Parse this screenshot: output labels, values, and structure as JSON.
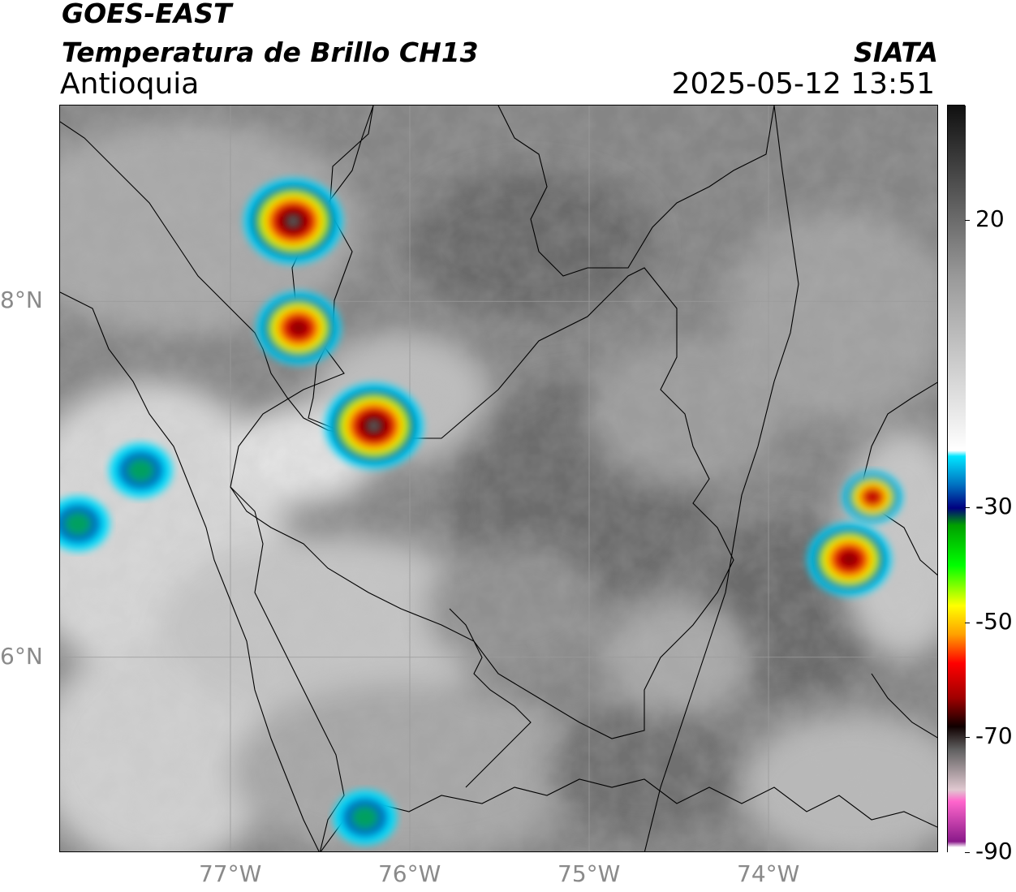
{
  "header": {
    "satellite": "GOES-EAST",
    "product": "Temperatura de Brillo CH13",
    "region": "Antioquia",
    "source": "SIATA",
    "datetime": "2025-05-12 13:51"
  },
  "map": {
    "lon_range": [
      -77.95,
      -73.05
    ],
    "lat_range": [
      4.9,
      9.1
    ],
    "lon_ticks": [
      {
        "lon": -77,
        "label": "77°W"
      },
      {
        "lon": -76,
        "label": "76°W"
      },
      {
        "lon": -75,
        "label": "75°W"
      },
      {
        "lon": -74,
        "label": "74°W"
      }
    ],
    "lat_ticks": [
      {
        "lat": 8,
        "label": "8°N"
      },
      {
        "lat": 6,
        "label": "6°N"
      }
    ],
    "gridlines": true,
    "storm_cells": [
      {
        "lon": -76.65,
        "lat": 8.45,
        "intensity": "extreme"
      },
      {
        "lon": -76.62,
        "lat": 7.85,
        "intensity": "strong"
      },
      {
        "lon": -76.2,
        "lat": 7.3,
        "intensity": "extreme"
      },
      {
        "lon": -73.55,
        "lat": 6.55,
        "intensity": "strong"
      },
      {
        "lon": -73.42,
        "lat": 6.9,
        "intensity": "moderate"
      },
      {
        "lon": -77.5,
        "lat": 7.05,
        "intensity": "weak"
      },
      {
        "lon": -77.85,
        "lat": 6.75,
        "intensity": "weak"
      },
      {
        "lon": -76.25,
        "lat": 5.1,
        "intensity": "weak"
      }
    ]
  },
  "colorbar": {
    "range": [
      -90,
      40
    ],
    "ticks": [
      {
        "value": 20,
        "label": "20"
      },
      {
        "value": -30,
        "label": "-30"
      },
      {
        "value": -50,
        "label": "-50"
      },
      {
        "value": -70,
        "label": "-70"
      },
      {
        "value": -90,
        "label": "-90"
      }
    ],
    "stops": [
      {
        "value": 40,
        "color": "#101010"
      },
      {
        "value": 10,
        "color": "#9a9a9a"
      },
      {
        "value": -20,
        "color": "#ffffff"
      },
      {
        "value": -21,
        "color": "#00e5ff"
      },
      {
        "value": -26,
        "color": "#0070c0"
      },
      {
        "value": -30,
        "color": "#000080"
      },
      {
        "value": -33,
        "color": "#00a000"
      },
      {
        "value": -40,
        "color": "#00ff00"
      },
      {
        "value": -47,
        "color": "#ffff00"
      },
      {
        "value": -52,
        "color": "#ffa000"
      },
      {
        "value": -57,
        "color": "#ff0000"
      },
      {
        "value": -63,
        "color": "#a00000"
      },
      {
        "value": -68,
        "color": "#100000"
      },
      {
        "value": -72,
        "color": "#606060"
      },
      {
        "value": -79,
        "color": "#e0c8d0"
      },
      {
        "value": -81,
        "color": "#ff66cc"
      },
      {
        "value": -88,
        "color": "#8a1a8a"
      },
      {
        "value": -89,
        "color": "#ffffff"
      }
    ]
  }
}
